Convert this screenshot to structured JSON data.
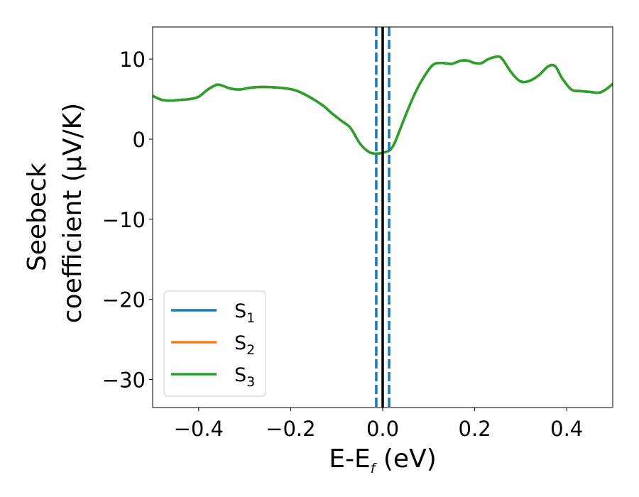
{
  "chart_data": {
    "type": "line",
    "xlabel_parts": [
      "E-E",
      "f",
      " (eV)"
    ],
    "ylabel_lines": [
      "Seebeck",
      "coefficient  (μV/K)"
    ],
    "xlim": [
      -0.5,
      0.5
    ],
    "ylim": [
      -33.5,
      14
    ],
    "xticks": [
      -0.4,
      -0.2,
      0.0,
      0.2,
      0.4
    ],
    "xtick_labels": [
      "−0.4",
      "−0.2",
      "0.0",
      "0.2",
      "0.4"
    ],
    "yticks": [
      -30,
      -20,
      -10,
      0,
      10
    ],
    "ytick_labels": [
      "−30",
      "−20",
      "−10",
      "0",
      "10"
    ],
    "grid": false,
    "legend_position": "lower-left",
    "x": [
      -0.5,
      -0.48,
      -0.46,
      -0.44,
      -0.42,
      -0.4,
      -0.38,
      -0.36,
      -0.345,
      -0.33,
      -0.31,
      -0.29,
      -0.27,
      -0.25,
      -0.22,
      -0.19,
      -0.16,
      -0.13,
      -0.11,
      -0.09,
      -0.07,
      -0.05,
      -0.03,
      -0.015,
      0.0,
      0.015,
      0.025,
      0.035,
      0.05,
      0.07,
      0.09,
      0.11,
      0.13,
      0.15,
      0.17,
      0.185,
      0.2,
      0.215,
      0.23,
      0.25,
      0.26,
      0.28,
      0.3,
      0.32,
      0.34,
      0.36,
      0.375,
      0.39,
      0.41,
      0.43,
      0.45,
      0.47,
      0.485,
      0.5
    ],
    "series": [
      {
        "name_parts": [
          "S",
          "1"
        ],
        "color": "#1f77b4",
        "values": [
          5.4,
          4.9,
          4.8,
          4.9,
          5.0,
          5.3,
          6.2,
          6.8,
          6.6,
          6.3,
          6.2,
          6.4,
          6.5,
          6.5,
          6.4,
          6.1,
          5.3,
          4.2,
          3.2,
          2.3,
          1.4,
          -0.5,
          -1.6,
          -1.8,
          -1.7,
          -1.4,
          -0.6,
          0.8,
          3.0,
          5.7,
          7.8,
          9.3,
          9.5,
          9.4,
          9.8,
          9.8,
          9.5,
          9.5,
          10.0,
          10.3,
          10.0,
          8.3,
          7.2,
          7.3,
          8.0,
          9.1,
          9.1,
          7.6,
          6.2,
          6.0,
          5.9,
          5.8,
          6.2,
          6.9
        ]
      },
      {
        "name_parts": [
          "S",
          "2"
        ],
        "color": "#ff7f0e",
        "values": [
          5.4,
          4.9,
          4.8,
          4.9,
          5.0,
          5.3,
          6.2,
          6.8,
          6.6,
          6.3,
          6.2,
          6.4,
          6.5,
          6.5,
          6.4,
          6.1,
          5.3,
          4.2,
          3.2,
          2.3,
          1.4,
          -0.5,
          -1.6,
          -1.8,
          -1.7,
          -1.4,
          -0.6,
          0.8,
          3.0,
          5.7,
          7.8,
          9.3,
          9.5,
          9.4,
          9.8,
          9.8,
          9.5,
          9.5,
          10.0,
          10.3,
          10.0,
          8.3,
          7.2,
          7.3,
          8.0,
          9.1,
          9.1,
          7.6,
          6.2,
          6.0,
          5.9,
          5.8,
          6.2,
          6.9
        ]
      },
      {
        "name_parts": [
          "S",
          "3"
        ],
        "color": "#2ca02c",
        "values": [
          5.4,
          4.9,
          4.8,
          4.9,
          5.0,
          5.3,
          6.2,
          6.8,
          6.6,
          6.3,
          6.2,
          6.4,
          6.5,
          6.5,
          6.4,
          6.1,
          5.3,
          4.2,
          3.2,
          2.3,
          1.4,
          -0.5,
          -1.6,
          -1.8,
          -1.7,
          -1.4,
          -0.6,
          0.8,
          3.0,
          5.7,
          7.8,
          9.3,
          9.5,
          9.4,
          9.8,
          9.8,
          9.5,
          9.5,
          10.0,
          10.3,
          10.0,
          8.3,
          7.2,
          7.3,
          8.0,
          9.1,
          9.1,
          7.6,
          6.2,
          6.0,
          5.9,
          5.8,
          6.2,
          6.9
        ]
      }
    ],
    "vlines": [
      {
        "x": 0.0,
        "color": "#000000",
        "style": "solid"
      },
      {
        "x": -0.014,
        "color": "#1f77b4",
        "style": "dashed"
      },
      {
        "x": 0.014,
        "color": "#1f77b4",
        "style": "dashed"
      }
    ]
  }
}
